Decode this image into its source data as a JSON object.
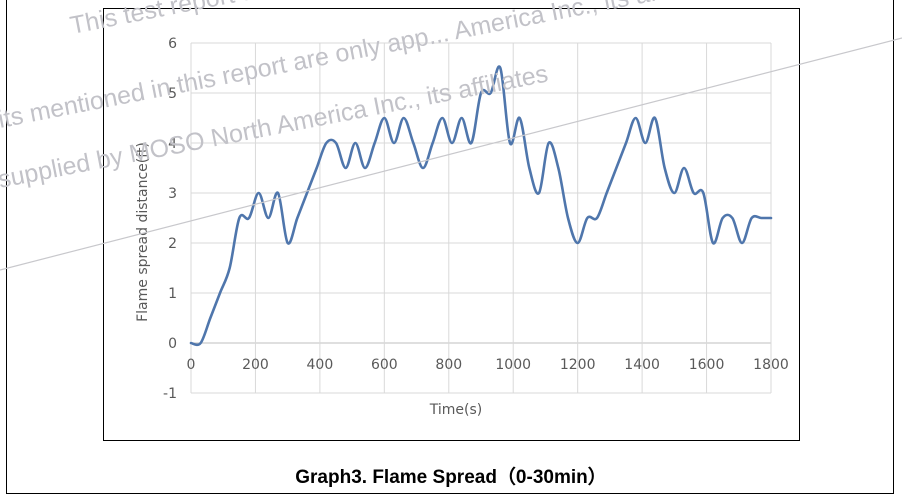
{
  "caption": "Graph3. Flame Spread（0-30min）",
  "watermark": {
    "lines": [
      "This test report are only applicable to ... its affiliates o",
      "its mentioned in this report are only app... America Inc., its affiliates",
      "supplied by MOSO North America Inc., its affiliates"
    ]
  },
  "chart_data": {
    "type": "line",
    "title": "",
    "xlabel": "Time(s)",
    "ylabel": "Flame spread distance(ft)",
    "xlim": [
      0,
      1800
    ],
    "ylim": [
      -1,
      6
    ],
    "xticks": [
      0,
      200,
      400,
      600,
      800,
      1000,
      1200,
      1400,
      1600,
      1800
    ],
    "yticks": [
      -1,
      0,
      1,
      2,
      3,
      4,
      5,
      6
    ],
    "grid": true,
    "legend": "none",
    "line_color": "#4f76ac",
    "series": [
      {
        "x": [
          0,
          30,
          60,
          90,
          120,
          150,
          180,
          210,
          240,
          270,
          300,
          330,
          360,
          390,
          420,
          450,
          480,
          510,
          540,
          570,
          600,
          630,
          660,
          690,
          720,
          750,
          780,
          810,
          840,
          870,
          900,
          930,
          960,
          990,
          1020,
          1050,
          1080,
          1110,
          1140,
          1170,
          1200,
          1230,
          1260,
          1290,
          1320,
          1350,
          1380,
          1410,
          1440,
          1470,
          1500,
          1530,
          1560,
          1590,
          1620,
          1650,
          1680,
          1710,
          1740,
          1770,
          1800
        ],
        "y": [
          0,
          0,
          0.5,
          1.0,
          1.5,
          2.5,
          2.5,
          3.0,
          2.5,
          3.0,
          2.0,
          2.5,
          3.0,
          3.5,
          4.0,
          4.0,
          3.5,
          4.0,
          3.5,
          4.0,
          4.5,
          4.0,
          4.5,
          4.0,
          3.5,
          4.0,
          4.5,
          4.0,
          4.5,
          4.0,
          5.0,
          5.0,
          5.5,
          4.0,
          4.5,
          3.5,
          3.0,
          4.0,
          3.5,
          2.5,
          2.0,
          2.5,
          2.5,
          3.0,
          3.5,
          4.0,
          4.5,
          4.0,
          4.5,
          3.5,
          3.0,
          3.5,
          3.0,
          3.0,
          2.0,
          2.5,
          2.5,
          2.0,
          2.5,
          2.5,
          2.5
        ]
      }
    ]
  }
}
